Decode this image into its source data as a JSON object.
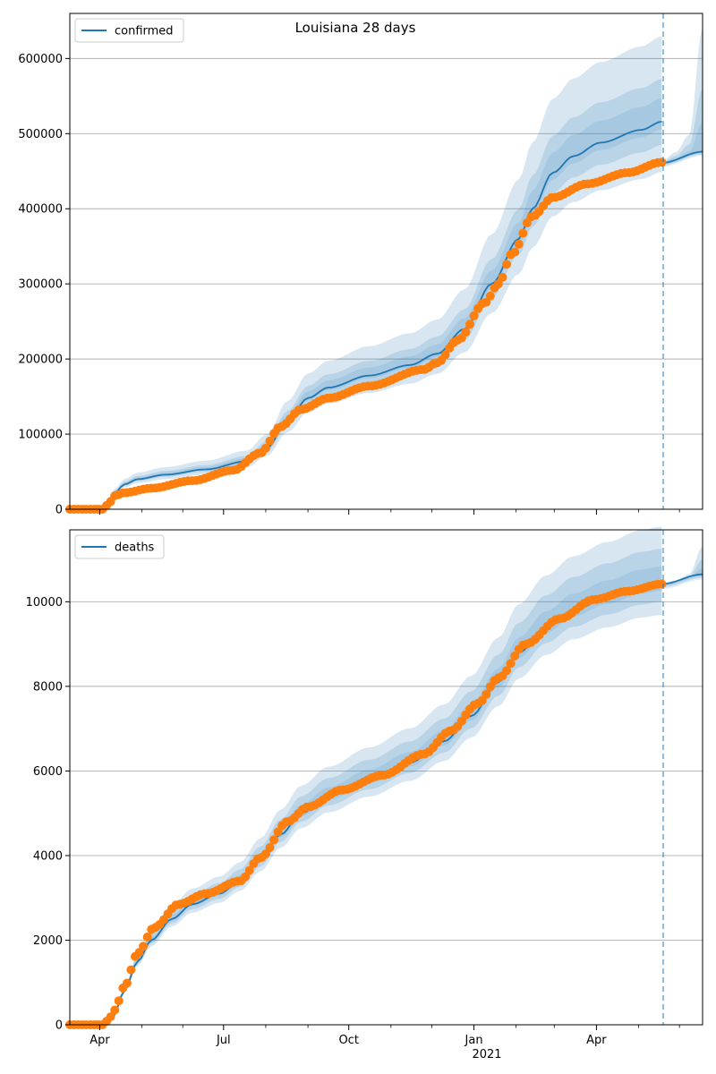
{
  "chart_data": [
    {
      "type": "line",
      "title": "Louisiana 28 days",
      "series_name": "confirmed",
      "ylim": [
        0,
        660000
      ],
      "y_ticks": [
        0,
        100000,
        200000,
        300000,
        400000,
        500000,
        600000
      ],
      "y_tick_labels": [
        "0",
        "100000",
        "200000",
        "300000",
        "400000",
        "500000",
        "600000"
      ],
      "x_ticks": [
        "Apr",
        "Jul",
        "Oct",
        "Jan",
        "Apr"
      ],
      "x_tick_sublabel": "",
      "grid": "y",
      "legend_position": "top-left",
      "line_color": "#1f77b4",
      "band_color": "#1f77b4",
      "marker_color": "#ff7f0e",
      "forecast_line_color": "#1f77b4",
      "model_knots": [
        [
          0,
          0
        ],
        [
          22,
          0
        ],
        [
          27,
          8000
        ],
        [
          33,
          22000
        ],
        [
          40,
          33000
        ],
        [
          50,
          40000
        ],
        [
          70,
          46000
        ],
        [
          100,
          53000
        ],
        [
          130,
          64000
        ],
        [
          145,
          82000
        ],
        [
          160,
          118000
        ],
        [
          175,
          148000
        ],
        [
          190,
          162000
        ],
        [
          220,
          178000
        ],
        [
          250,
          192000
        ],
        [
          270,
          207000
        ],
        [
          290,
          240000
        ],
        [
          310,
          300000
        ],
        [
          330,
          360000
        ],
        [
          340,
          400000
        ],
        [
          355,
          448000
        ],
        [
          370,
          470000
        ],
        [
          390,
          488000
        ],
        [
          420,
          505000
        ],
        [
          435,
          516000
        ]
      ],
      "observed_knots": [
        [
          0,
          0
        ],
        [
          24,
          0
        ],
        [
          28,
          6000
        ],
        [
          33,
          18000
        ],
        [
          40,
          22000
        ],
        [
          60,
          28000
        ],
        [
          90,
          38000
        ],
        [
          120,
          52000
        ],
        [
          140,
          75000
        ],
        [
          155,
          110000
        ],
        [
          170,
          133000
        ],
        [
          190,
          148000
        ],
        [
          220,
          164000
        ],
        [
          260,
          186000
        ],
        [
          270,
          195000
        ],
        [
          285,
          225000
        ],
        [
          305,
          275000
        ],
        [
          315,
          300000
        ],
        [
          325,
          340000
        ],
        [
          340,
          390000
        ],
        [
          355,
          415000
        ],
        [
          380,
          433000
        ],
        [
          410,
          448000
        ],
        [
          435,
          462000
        ]
      ],
      "forecast_knots": [
        [
          435,
          461000
        ],
        [
          465,
          476000
        ]
      ],
      "band_spreads": [
        [
          0.06,
          0.02
        ],
        [
          0.11,
          0.06
        ],
        [
          0.22,
          0.13
        ]
      ],
      "forecast_bands": [
        [
          [
            435,
            463000
          ],
          [
            445,
            475000
          ],
          [
            455,
            498000
          ],
          [
            465,
            640000
          ]
        ],
        [
          [
            435,
            462000
          ],
          [
            445,
            470000
          ],
          [
            455,
            485000
          ],
          [
            465,
            560000
          ]
        ],
        [
          [
            435,
            461000
          ],
          [
            445,
            467000
          ],
          [
            455,
            476000
          ],
          [
            465,
            515000
          ]
        ]
      ]
    },
    {
      "type": "line",
      "title": "",
      "series_name": "deaths",
      "ylim": [
        0,
        11700
      ],
      "y_ticks": [
        0,
        2000,
        4000,
        6000,
        8000,
        10000
      ],
      "y_tick_labels": [
        "0",
        "2000",
        "4000",
        "6000",
        "8000",
        "10000"
      ],
      "x_ticks": [
        "Apr",
        "Jul",
        "Oct",
        "Jan",
        "Apr"
      ],
      "x_tick_sublabel": "2021",
      "grid": "y",
      "legend_position": "top-left",
      "line_color": "#1f77b4",
      "band_color": "#1f77b4",
      "marker_color": "#ff7f0e",
      "forecast_line_color": "#1f77b4",
      "model_knots": [
        [
          0,
          0
        ],
        [
          22,
          0
        ],
        [
          27,
          30
        ],
        [
          32,
          200
        ],
        [
          40,
          800
        ],
        [
          50,
          1500
        ],
        [
          60,
          2000
        ],
        [
          75,
          2500
        ],
        [
          90,
          2850
        ],
        [
          110,
          3100
        ],
        [
          125,
          3400
        ],
        [
          140,
          3900
        ],
        [
          155,
          4500
        ],
        [
          170,
          5000
        ],
        [
          190,
          5400
        ],
        [
          220,
          5800
        ],
        [
          250,
          6200
        ],
        [
          275,
          6700
        ],
        [
          295,
          7300
        ],
        [
          315,
          8100
        ],
        [
          330,
          8800
        ],
        [
          350,
          9400
        ],
        [
          370,
          9800
        ],
        [
          395,
          10100
        ],
        [
          420,
          10350
        ],
        [
          435,
          10420
        ]
      ],
      "observed_knots": [
        [
          0,
          0
        ],
        [
          24,
          0
        ],
        [
          28,
          100
        ],
        [
          33,
          350
        ],
        [
          40,
          900
        ],
        [
          50,
          1700
        ],
        [
          62,
          2300
        ],
        [
          80,
          2850
        ],
        [
          100,
          3100
        ],
        [
          125,
          3400
        ],
        [
          140,
          3950
        ],
        [
          160,
          4800
        ],
        [
          175,
          5150
        ],
        [
          200,
          5550
        ],
        [
          230,
          5900
        ],
        [
          260,
          6400
        ],
        [
          280,
          6950
        ],
        [
          300,
          7600
        ],
        [
          315,
          8200
        ],
        [
          335,
          9000
        ],
        [
          360,
          9600
        ],
        [
          385,
          10050
        ],
        [
          410,
          10250
        ],
        [
          435,
          10420
        ]
      ],
      "forecast_knots": [
        [
          435,
          10420
        ],
        [
          465,
          10650
        ]
      ],
      "band_spreads": [
        [
          0.04,
          0.015
        ],
        [
          0.08,
          0.04
        ],
        [
          0.13,
          0.07
        ]
      ],
      "forecast_bands": [
        [
          [
            435,
            10440
          ],
          [
            445,
            10500
          ],
          [
            455,
            10650
          ],
          [
            465,
            11300
          ]
        ],
        [
          [
            435,
            10430
          ],
          [
            445,
            10480
          ],
          [
            455,
            10600
          ],
          [
            465,
            11000
          ]
        ],
        [
          [
            435,
            10420
          ],
          [
            445,
            10460
          ],
          [
            455,
            10560
          ],
          [
            465,
            10800
          ]
        ]
      ]
    }
  ]
}
